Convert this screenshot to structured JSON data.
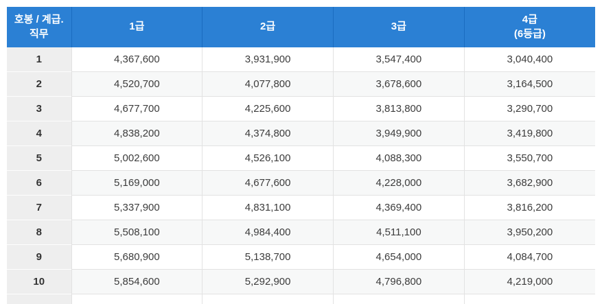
{
  "table": {
    "columns": [
      "호봉 / 계급.\n직무",
      "1급",
      "2급",
      "3급",
      "4급\n(6등급)"
    ],
    "rows": [
      {
        "step": "1",
        "values": [
          "4,367,600",
          "3,931,900",
          "3,547,400",
          "3,040,400"
        ]
      },
      {
        "step": "2",
        "values": [
          "4,520,700",
          "4,077,800",
          "3,678,600",
          "3,164,500"
        ]
      },
      {
        "step": "3",
        "values": [
          "4,677,700",
          "4,225,600",
          "3,813,800",
          "3,290,700"
        ]
      },
      {
        "step": "4",
        "values": [
          "4,838,200",
          "4,374,800",
          "3,949,900",
          "3,419,800"
        ]
      },
      {
        "step": "5",
        "values": [
          "5,002,600",
          "4,526,100",
          "4,088,300",
          "3,550,700"
        ]
      },
      {
        "step": "6",
        "values": [
          "5,169,000",
          "4,677,600",
          "4,228,000",
          "3,682,900"
        ]
      },
      {
        "step": "7",
        "values": [
          "5,337,900",
          "4,831,100",
          "4,369,400",
          "3,816,200"
        ]
      },
      {
        "step": "8",
        "values": [
          "5,508,100",
          "4,984,400",
          "4,511,100",
          "3,950,200"
        ]
      },
      {
        "step": "9",
        "values": [
          "5,680,900",
          "5,138,700",
          "4,654,000",
          "4,084,700"
        ]
      },
      {
        "step": "10",
        "values": [
          "5,854,600",
          "5,292,900",
          "4,796,800",
          "4,219,000"
        ]
      }
    ],
    "colors": {
      "header_bg": "#2b80d4",
      "header_divider": "#1a6cc0",
      "header_text": "#ffffff",
      "first_column_bg": "#eeeeee",
      "stripe_bg": "#f7f8f8",
      "border": "#e2e2e2",
      "number_text": "#3c3c3c"
    }
  }
}
